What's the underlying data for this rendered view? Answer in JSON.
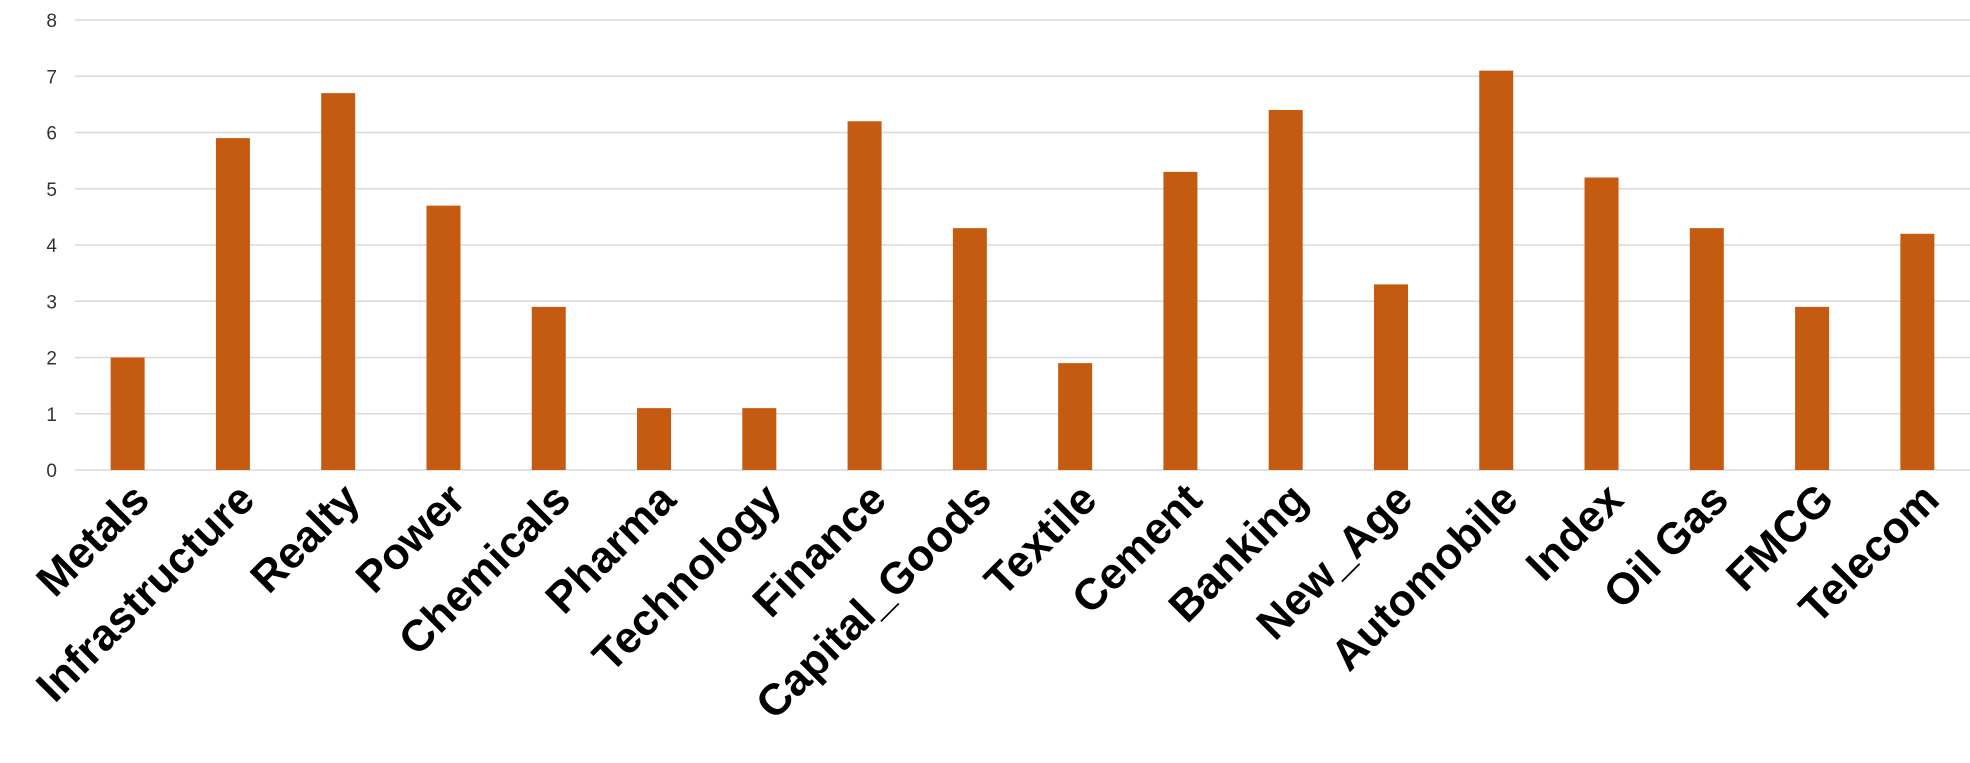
{
  "chart_data": {
    "type": "bar",
    "title": "",
    "xlabel": "",
    "ylabel": "",
    "categories": [
      "Metals",
      "Infrastructure",
      "Realty",
      "Power",
      "Chemicals",
      "Pharma",
      "Technology",
      "Finance",
      "Capital_Goods",
      "Textile",
      "Cement",
      "Banking",
      "New_Age",
      "Automobile",
      "Index",
      "Oil Gas",
      "FMCG",
      "Telecom"
    ],
    "values": [
      2.0,
      5.9,
      6.7,
      4.7,
      2.9,
      1.1,
      1.1,
      6.2,
      4.3,
      1.9,
      5.3,
      6.4,
      3.3,
      7.1,
      5.2,
      4.3,
      2.9,
      4.2
    ],
    "ylim": [
      0,
      8
    ],
    "yticks": [
      0,
      1,
      2,
      3,
      4,
      5,
      6,
      7,
      8
    ],
    "grid": true,
    "legend": "none",
    "bar_color": "#c55a11"
  }
}
